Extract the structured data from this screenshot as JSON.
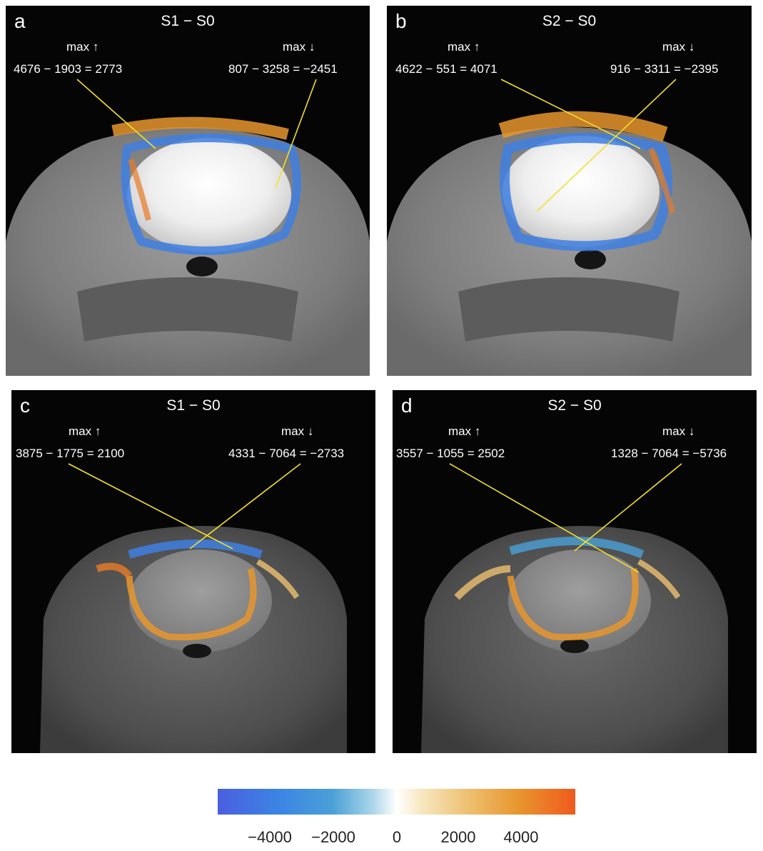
{
  "panels": [
    {
      "label": "a",
      "title": "S1 − S0",
      "max_up_label": "max ↑",
      "max_down_label": "max ↓",
      "up_eq": "4676 − 1903 = 2773",
      "down_eq": "807 − 3258 = −2451"
    },
    {
      "label": "b",
      "title": "S2 − S0",
      "max_up_label": "max ↑",
      "max_down_label": "max ↓",
      "up_eq": "4622 − 551 = 4071",
      "down_eq": "916 − 3311 = −2395"
    },
    {
      "label": "c",
      "title": "S1 − S0",
      "max_up_label": "max ↑",
      "max_down_label": "max ↓",
      "up_eq": "3875 − 1775 = 2100",
      "down_eq": "4331 − 7064 = −2733"
    },
    {
      "label": "d",
      "title": "S2 − S0",
      "max_up_label": "max ↑",
      "max_down_label": "max ↓",
      "up_eq": "3557 − 1055 = 2502",
      "down_eq": "1328 − 7064 = −5736"
    }
  ],
  "colorbar": {
    "ticks": [
      "−4000",
      "−2000",
      "0",
      "2000",
      "4000"
    ],
    "colors": [
      "#4a5fe0",
      "#4aa0d6",
      "#ffffff",
      "#eec070",
      "#f05a1e"
    ]
  },
  "annotation_color": "#f2e02a"
}
